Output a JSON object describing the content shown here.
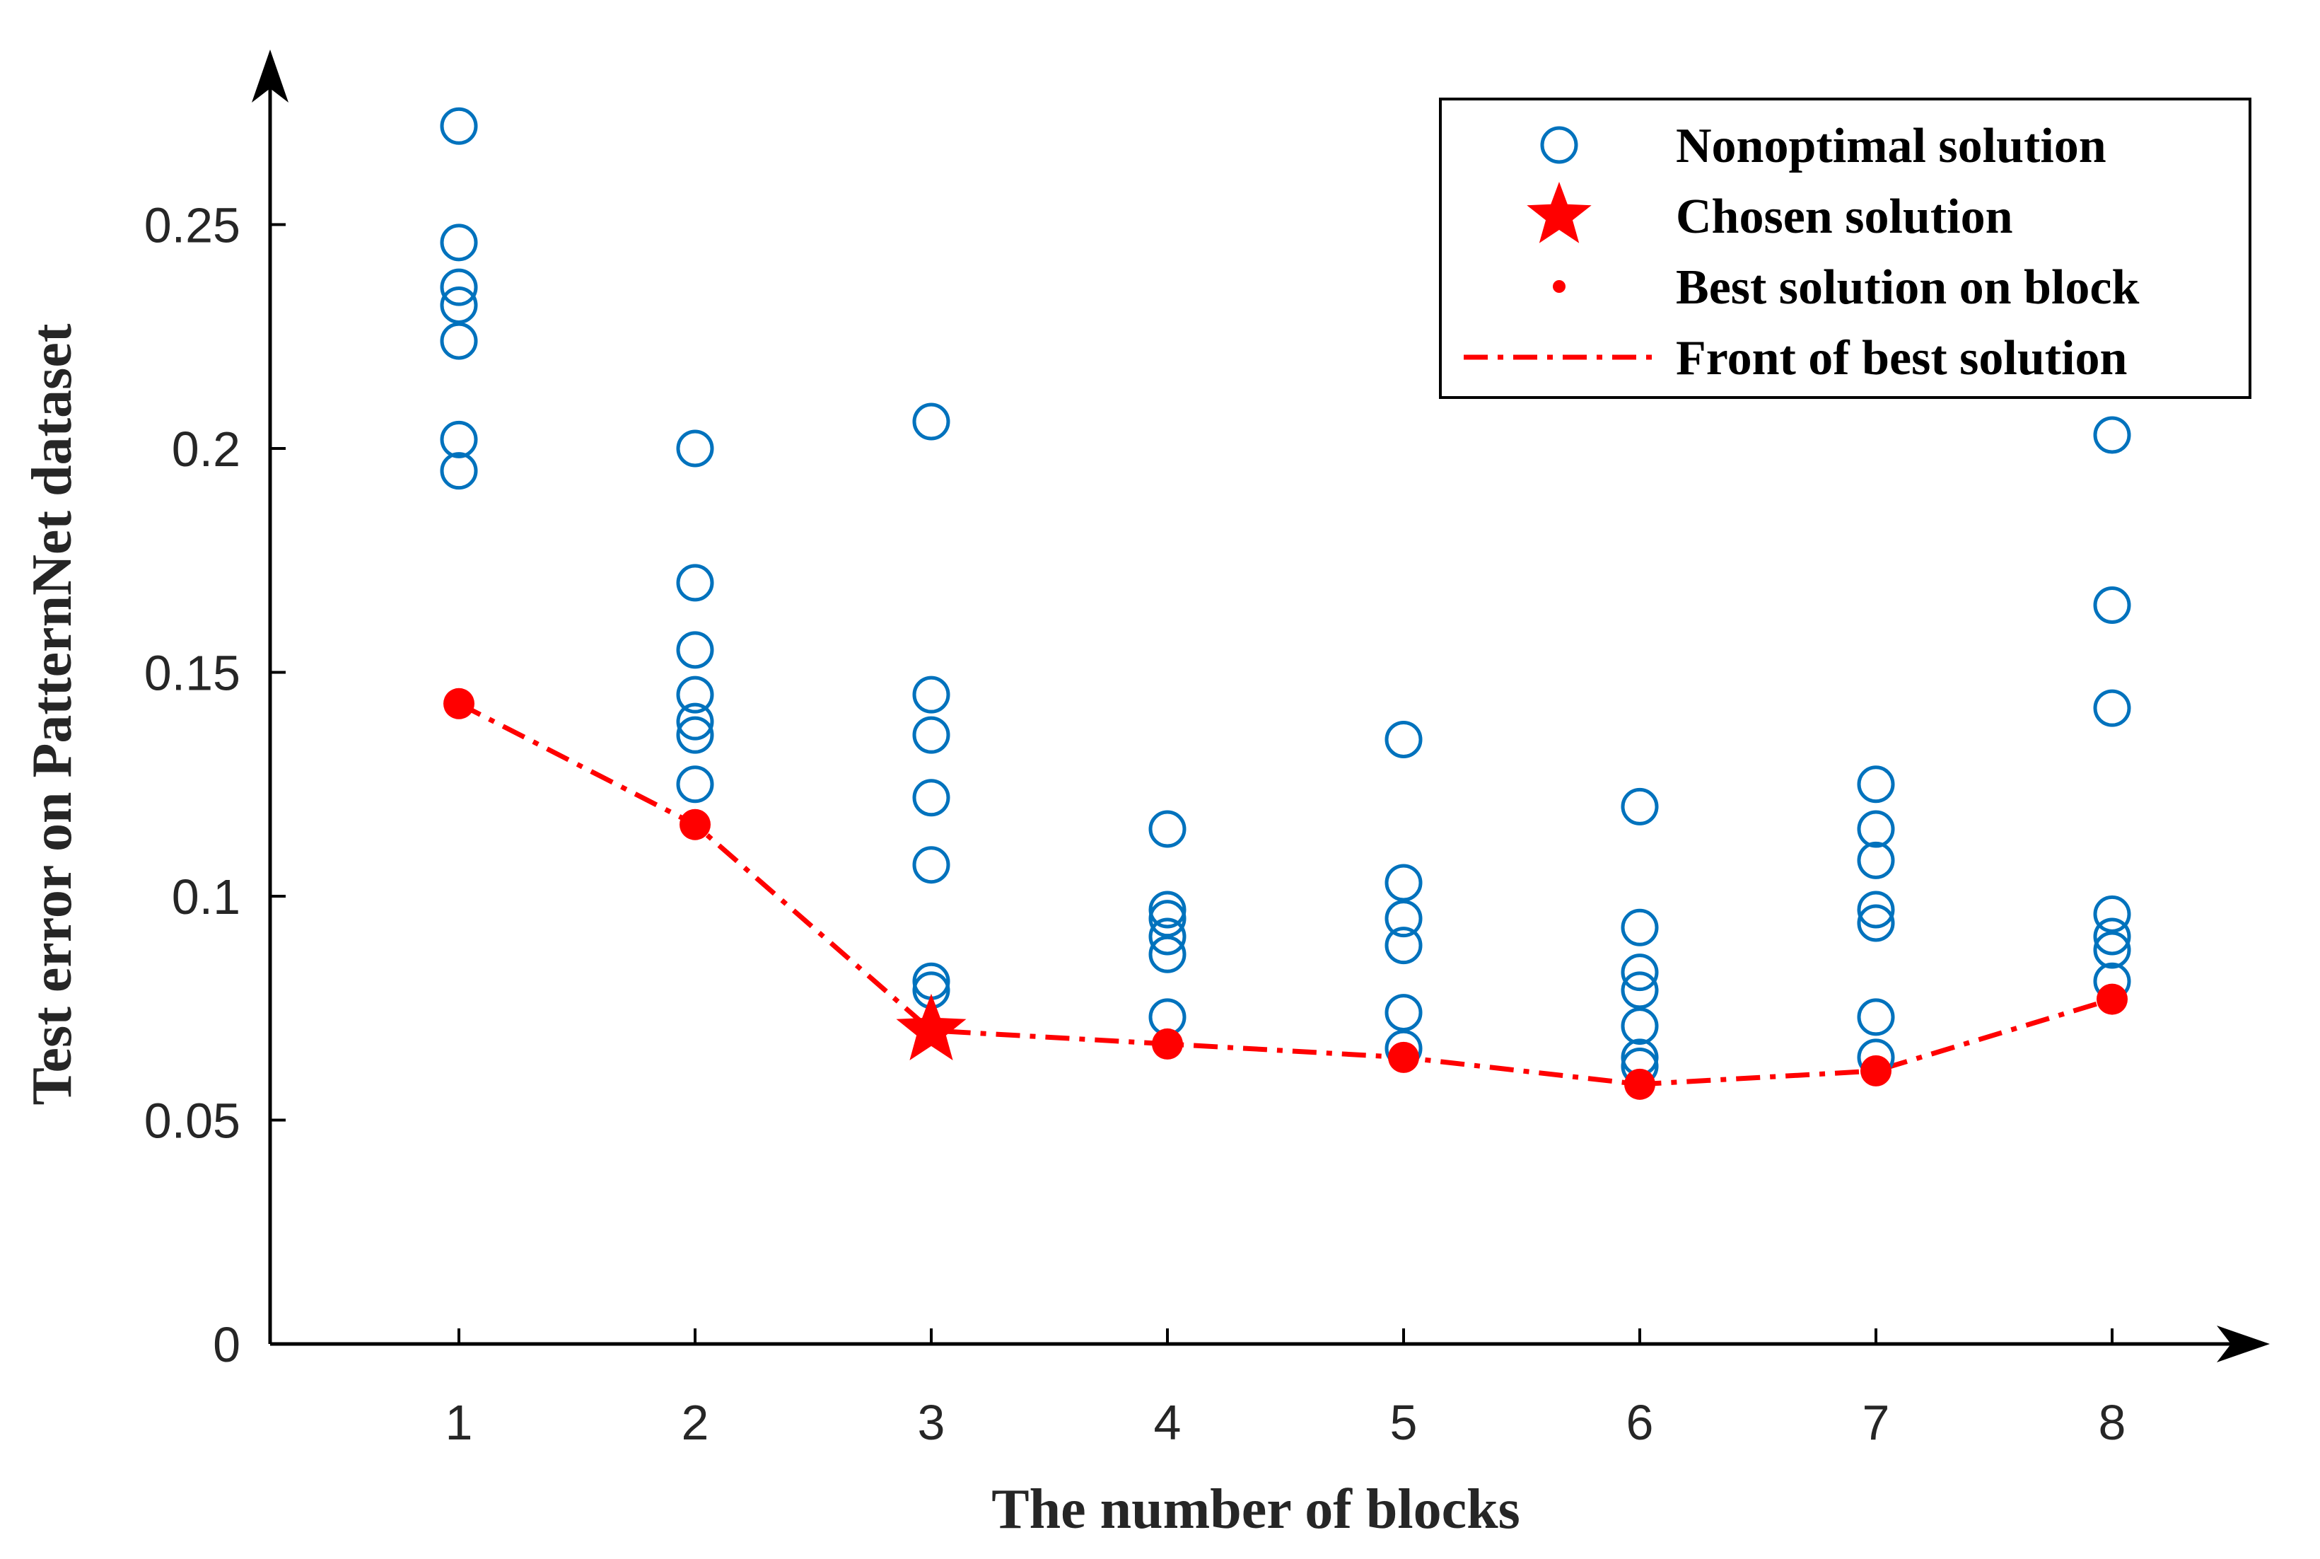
{
  "chart_data": {
    "type": "scatter",
    "xlabel": "The number of blocks",
    "ylabel": "Test error on PatternNet dataset",
    "xlim": [
      0.2,
      8.75
    ],
    "ylim": [
      0,
      0.2775
    ],
    "x_ticks": [
      1,
      2,
      3,
      4,
      5,
      6,
      7,
      8
    ],
    "x_tick_labels": [
      "1",
      "2",
      "3",
      "4",
      "5",
      "6",
      "7",
      "8"
    ],
    "y_ticks": [
      0,
      0.05,
      0.1,
      0.15,
      0.2,
      0.25
    ],
    "y_tick_labels": [
      "0",
      "0.05",
      "0.1",
      "0.15",
      "0.2",
      "0.25"
    ],
    "grid": false,
    "legend_position": "top-right",
    "series": [
      {
        "name": "Nonoptimal solution",
        "marker": "open-circle",
        "color": "#0072BD",
        "points": [
          [
            1,
            0.272
          ],
          [
            1,
            0.246
          ],
          [
            1,
            0.236
          ],
          [
            1,
            0.232
          ],
          [
            1,
            0.224
          ],
          [
            1,
            0.202
          ],
          [
            1,
            0.195
          ],
          [
            2,
            0.2
          ],
          [
            2,
            0.17
          ],
          [
            2,
            0.155
          ],
          [
            2,
            0.145
          ],
          [
            2,
            0.139
          ],
          [
            2,
            0.136
          ],
          [
            2,
            0.125
          ],
          [
            3,
            0.206
          ],
          [
            3,
            0.145
          ],
          [
            3,
            0.136
          ],
          [
            3,
            0.122
          ],
          [
            3,
            0.107
          ],
          [
            3,
            0.081
          ],
          [
            3,
            0.079
          ],
          [
            4,
            0.115
          ],
          [
            4,
            0.097
          ],
          [
            4,
            0.095
          ],
          [
            4,
            0.091
          ],
          [
            4,
            0.087
          ],
          [
            4,
            0.073
          ],
          [
            5,
            0.135
          ],
          [
            5,
            0.103
          ],
          [
            5,
            0.095
          ],
          [
            5,
            0.089
          ],
          [
            5,
            0.074
          ],
          [
            5,
            0.066
          ],
          [
            6,
            0.12
          ],
          [
            6,
            0.093
          ],
          [
            6,
            0.083
          ],
          [
            6,
            0.079
          ],
          [
            6,
            0.071
          ],
          [
            6,
            0.064
          ],
          [
            6,
            0.062
          ],
          [
            7,
            0.125
          ],
          [
            7,
            0.115
          ],
          [
            7,
            0.108
          ],
          [
            7,
            0.097
          ],
          [
            7,
            0.094
          ],
          [
            7,
            0.073
          ],
          [
            7,
            0.064
          ],
          [
            8,
            0.203
          ],
          [
            8,
            0.165
          ],
          [
            8,
            0.142
          ],
          [
            8,
            0.096
          ],
          [
            8,
            0.091
          ],
          [
            8,
            0.088
          ],
          [
            8,
            0.081
          ]
        ]
      },
      {
        "name": "Chosen solution",
        "marker": "star",
        "color": "#FF0000",
        "points": [
          [
            3,
            0.07
          ]
        ]
      },
      {
        "name": "Best solution on block",
        "marker": "filled-dot",
        "color": "#FF0000",
        "points": [
          [
            1,
            0.143
          ],
          [
            2,
            0.116
          ],
          [
            4,
            0.067
          ],
          [
            5,
            0.064
          ],
          [
            6,
            0.058
          ],
          [
            7,
            0.061
          ],
          [
            8,
            0.077
          ]
        ]
      },
      {
        "name": "Front of best solution",
        "marker": "dash-dot-line",
        "color": "#FF0000",
        "x": [
          1,
          2,
          3,
          4,
          5,
          6,
          7,
          8
        ],
        "values": [
          0.143,
          0.116,
          0.07,
          0.067,
          0.064,
          0.058,
          0.061,
          0.077
        ]
      }
    ]
  }
}
